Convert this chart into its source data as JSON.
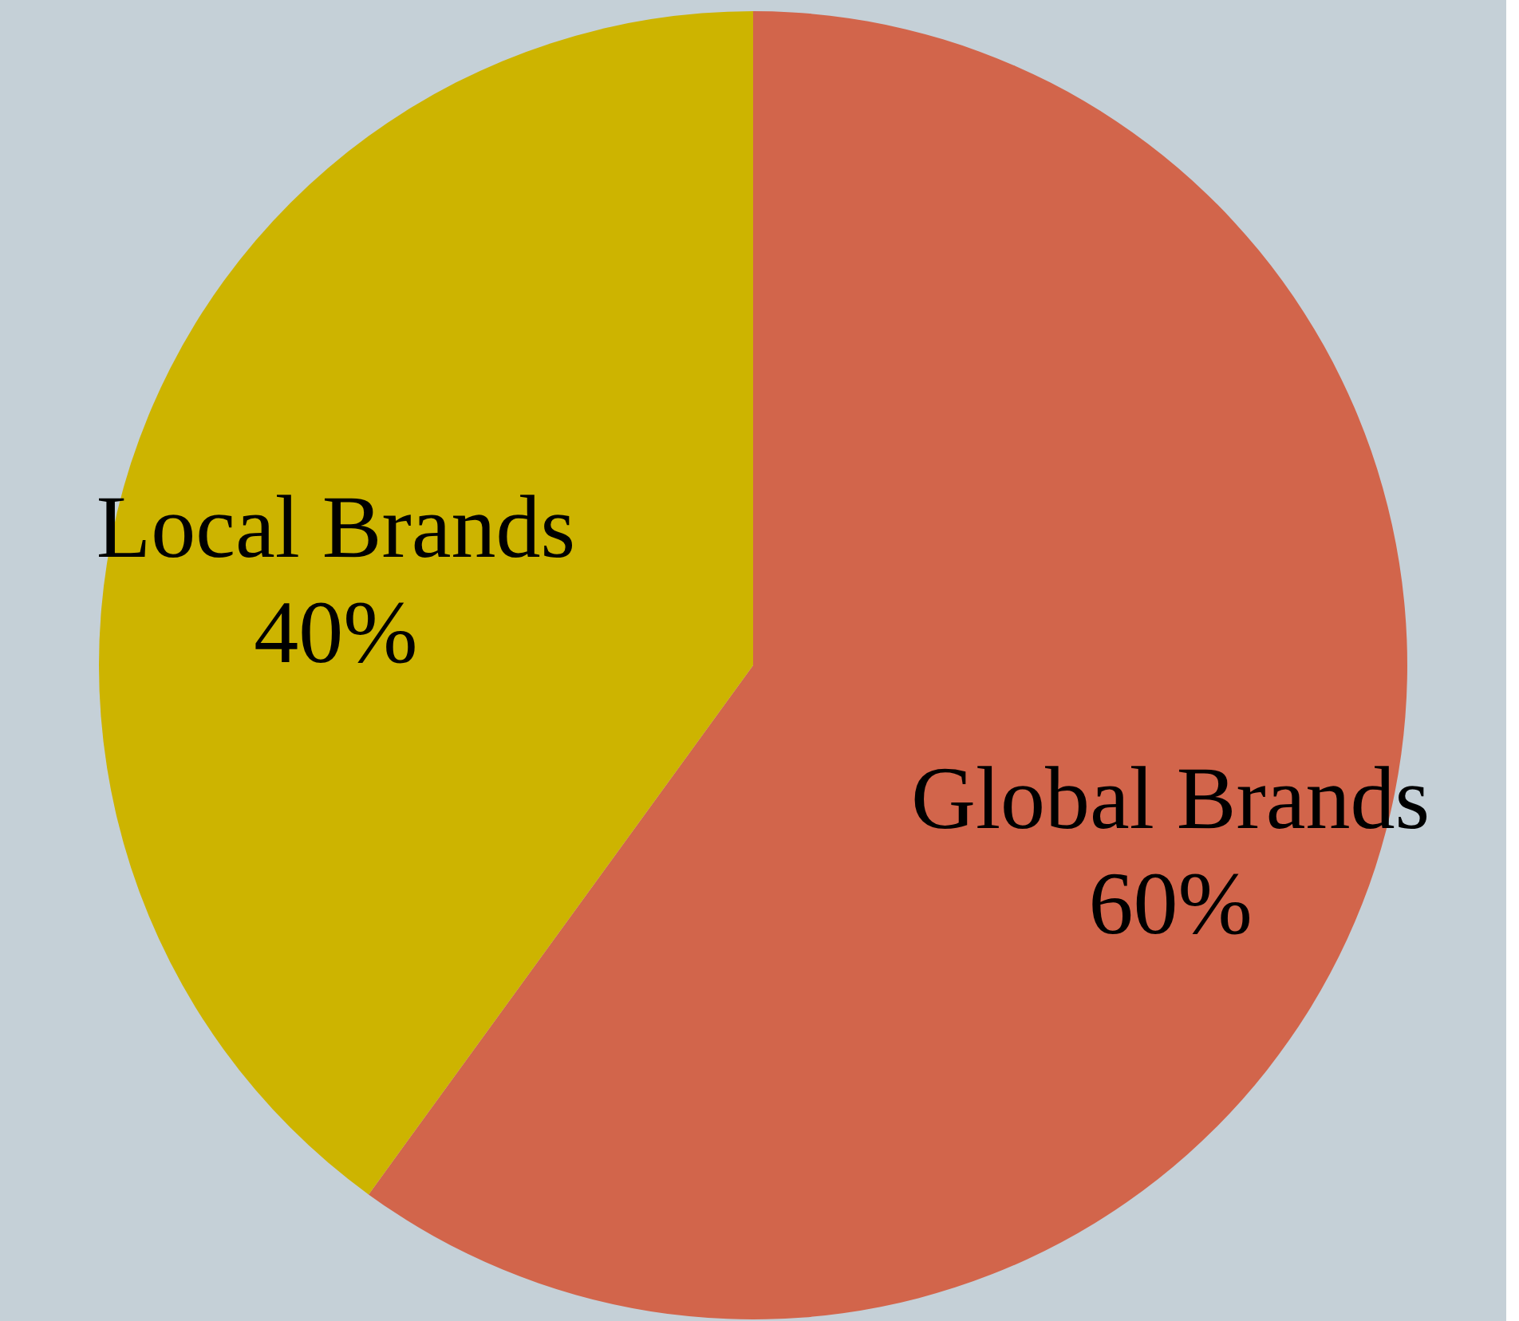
{
  "chart_data": {
    "type": "pie",
    "categories": [
      "Global Brands",
      "Local Brands"
    ],
    "values": [
      60,
      40
    ],
    "colors": [
      "#d2654b",
      "#cdb400"
    ],
    "value_labels": [
      "60%",
      "40%"
    ]
  }
}
